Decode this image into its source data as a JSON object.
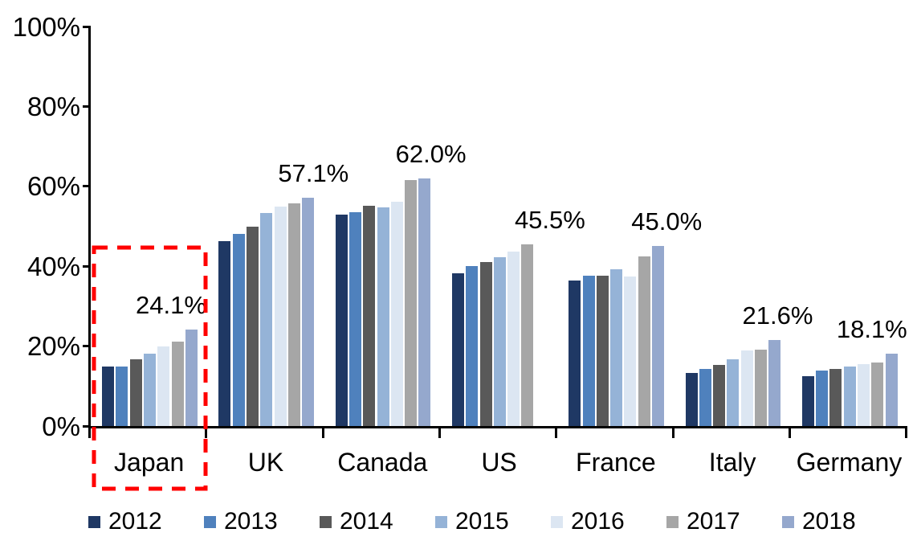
{
  "chart_data": {
    "type": "bar",
    "title": "",
    "xlabel": "",
    "ylabel": "",
    "ylim": [
      0,
      100
    ],
    "grid": false,
    "legend_position": "bottom",
    "y_tick_labels": [
      "100%",
      "80%",
      "60%",
      "40%",
      "20%",
      "0%"
    ],
    "categories": [
      "Japan",
      "UK",
      "Canada",
      "US",
      "France",
      "Italy",
      "Germany"
    ],
    "series": [
      {
        "name": "2012",
        "color": "#1F3864",
        "values": [
          14.8,
          46.3,
          53.0,
          38.3,
          36.5,
          13.3,
          12.5
        ]
      },
      {
        "name": "2013",
        "color": "#4F81BD",
        "values": [
          14.9,
          48.0,
          53.5,
          40.1,
          37.7,
          14.2,
          13.9
        ]
      },
      {
        "name": "2014",
        "color": "#595959",
        "values": [
          16.6,
          50.0,
          55.1,
          41.1,
          37.7,
          15.2,
          14.3
        ]
      },
      {
        "name": "2015",
        "color": "#95B3D7",
        "values": [
          18.1,
          53.4,
          54.8,
          42.3,
          39.3,
          16.8,
          14.8
        ]
      },
      {
        "name": "2016",
        "color": "#DCE6F2",
        "values": [
          20.0,
          54.9,
          56.2,
          43.6,
          37.4,
          19.0,
          15.4
        ]
      },
      {
        "name": "2017",
        "color": "#A6A6A6",
        "values": [
          21.1,
          55.8,
          61.6,
          45.5,
          42.4,
          19.2,
          15.9
        ]
      },
      {
        "name": "2018",
        "color": "#95A8CD",
        "values": [
          24.1,
          57.1,
          62.0,
          null,
          45.0,
          21.6,
          18.1
        ]
      }
    ],
    "point_labels": [
      "24.1%",
      "57.1%",
      "62.0%",
      "45.5%",
      "45.0%",
      "21.6%",
      "18.1%"
    ],
    "annotation": {
      "type": "dashed-box",
      "target": "Japan",
      "color": "#FF0000"
    }
  }
}
